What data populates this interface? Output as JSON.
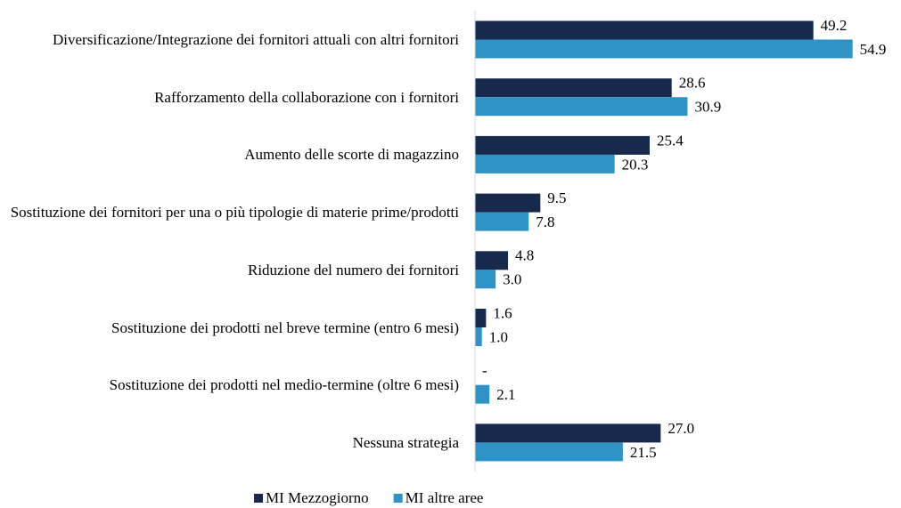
{
  "chart_data": {
    "type": "bar",
    "orientation": "horizontal",
    "categories": [
      "Diversificazione/Integrazione dei fornitori attuali con altri fornitori",
      "Rafforzamento della collaborazione con i fornitori",
      "Aumento delle scorte di magazzino",
      "Sostituzione dei fornitori per una o più tipologie di materie prime/prodotti",
      "Riduzione del numero dei fornitori",
      "Sostituzione dei prodotti nel breve termine (entro 6 mesi)",
      "Sostituzione dei prodotti nel medio-termine (oltre 6 mesi)",
      "Nessuna strategia"
    ],
    "series": [
      {
        "name": "MI Mezzogiorno",
        "color": "#172a4d",
        "values": [
          49.2,
          28.6,
          25.4,
          9.5,
          4.8,
          1.6,
          null,
          27.0
        ],
        "value_labels": [
          "49.2",
          "28.6",
          "25.4",
          "9.5",
          "4.8",
          "1.6",
          "-",
          "27.0"
        ]
      },
      {
        "name": "MI altre aree",
        "color": "#2f93c6",
        "values": [
          54.9,
          30.9,
          20.3,
          7.8,
          3.0,
          1.0,
          2.1,
          21.5
        ],
        "value_labels": [
          "54.9",
          "30.9",
          "20.3",
          "7.8",
          "3.0",
          "1.0",
          "2.1",
          "21.5"
        ]
      }
    ],
    "xlim": [
      0,
      60
    ],
    "legend": "bottom"
  }
}
